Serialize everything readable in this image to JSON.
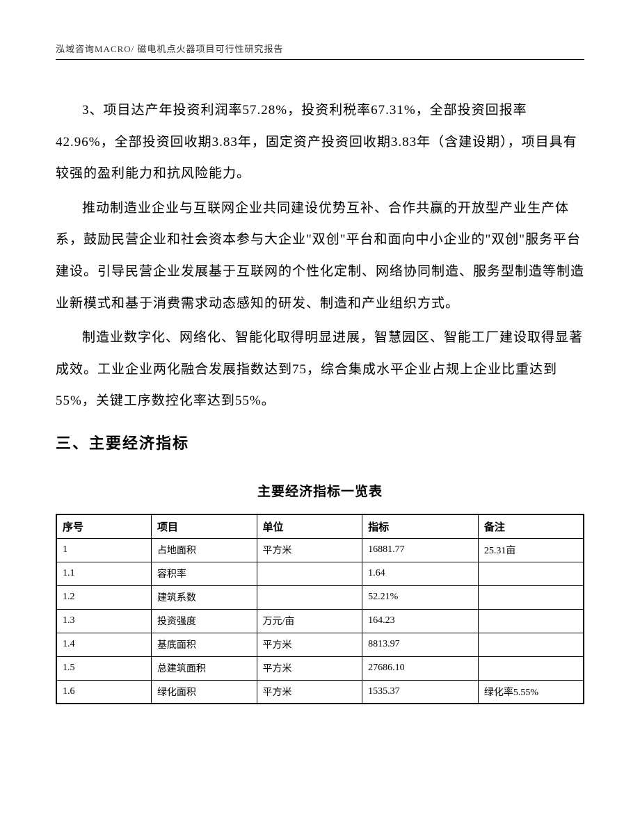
{
  "header": {
    "text": "泓域咨询MACRO/ 磁电机点火器项目可行性研究报告"
  },
  "paragraphs": {
    "p1": "3、项目达产年投资利润率57.28%，投资利税率67.31%，全部投资回报率42.96%，全部投资回收期3.83年，固定资产投资回收期3.83年（含建设期），项目具有较强的盈利能力和抗风险能力。",
    "p2": "推动制造业企业与互联网企业共同建设优势互补、合作共赢的开放型产业生产体系，鼓励民营企业和社会资本参与大企业\"双创\"平台和面向中小企业的\"双创\"服务平台建设。引导民营企业发展基于互联网的个性化定制、网络协同制造、服务型制造等制造业新模式和基于消费需求动态感知的研发、制造和产业组织方式。",
    "p3": "制造业数字化、网络化、智能化取得明显进展，智慧园区、智能工厂建设取得显著成效。工业企业两化融合发展指数达到75，综合集成水平企业占规上企业比重达到55%，关键工序数控化率达到55%。"
  },
  "section_heading": "三、主要经济指标",
  "table": {
    "title": "主要经济指标一览表",
    "columns": [
      "序号",
      "项目",
      "单位",
      "指标",
      "备注"
    ],
    "rows": [
      [
        "1",
        "占地面积",
        "平方米",
        "16881.77",
        "25.31亩"
      ],
      [
        "1.1",
        "容积率",
        "",
        "1.64",
        ""
      ],
      [
        "1.2",
        "建筑系数",
        "",
        "52.21%",
        ""
      ],
      [
        "1.3",
        "投资强度",
        "万元/亩",
        "164.23",
        ""
      ],
      [
        "1.4",
        "基底面积",
        "平方米",
        "8813.97",
        ""
      ],
      [
        "1.5",
        "总建筑面积",
        "平方米",
        "27686.10",
        ""
      ],
      [
        "1.6",
        "绿化面积",
        "平方米",
        "1535.37",
        "绿化率5.55%"
      ]
    ]
  },
  "styles": {
    "page_background": "#ffffff",
    "text_color": "#000000",
    "header_color": "#333333",
    "border_color": "#000000",
    "body_fontsize": 19,
    "heading_fontsize": 22,
    "table_fontsize": 14,
    "header_fontsize": 13,
    "line_height": 2.4
  }
}
